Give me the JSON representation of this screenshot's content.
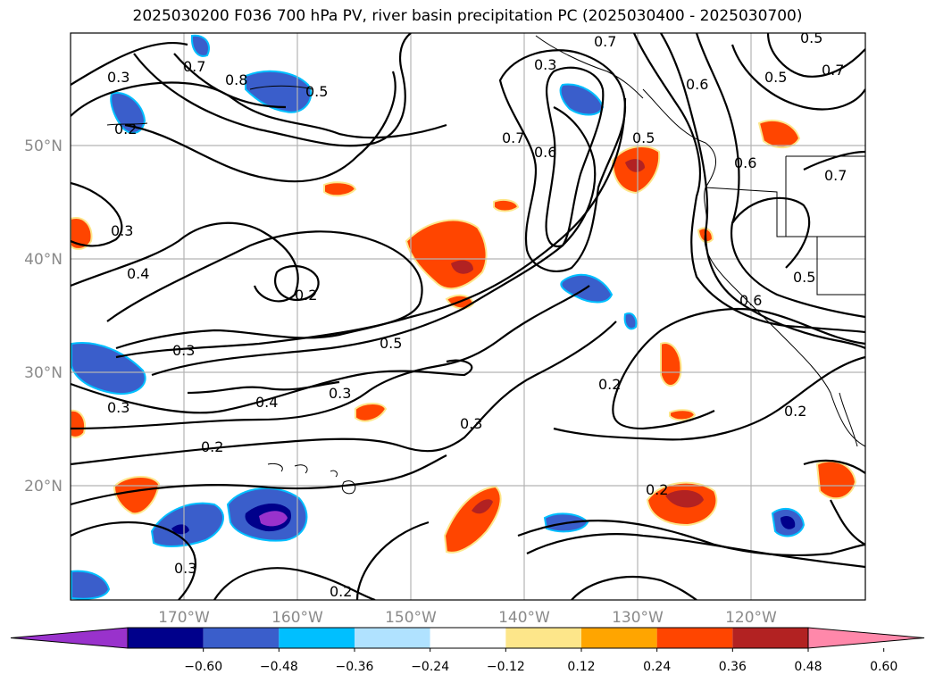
{
  "title": "2025030200 F036 700 hPa PV, river basin precipitation PC (2025030400 - 2025030700)",
  "lat_labels": [
    "50°N",
    "40°N",
    "30°N",
    "20°N"
  ],
  "lon_labels": [
    "170°W",
    "160°W",
    "150°W",
    "140°W",
    "130°W",
    "120°W"
  ],
  "colorbar": {
    "ticks": [
      "−0.60",
      "−0.48",
      "−0.36",
      "−0.24",
      "−0.12",
      "0.12",
      "0.24",
      "0.36",
      "0.48",
      "0.60"
    ],
    "colors": [
      "#9932cc",
      "#00008b",
      "#3a5ecb",
      "#00bfff",
      "#b0e2ff",
      "#ffffff",
      "#fde68a",
      "#ffa500",
      "#ff4500",
      "#b22222",
      "#ff88aa"
    ]
  },
  "contour_labels": [
    "0.3",
    "0.2",
    "0.7",
    "0.8",
    "0.5",
    "0.3",
    "0.7",
    "0.6",
    "0.5",
    "0.7",
    "0.6",
    "0.5",
    "0.7",
    "0.3",
    "0.4",
    "0.2",
    "0.5",
    "0.3",
    "0.4",
    "0.3",
    "0.2",
    "0.3",
    "0.2",
    "0.3",
    "0.2",
    "0.5",
    "0.7",
    "0.6",
    "0.5",
    "0.6",
    "0.2",
    "0.2",
    "0.3"
  ]
}
